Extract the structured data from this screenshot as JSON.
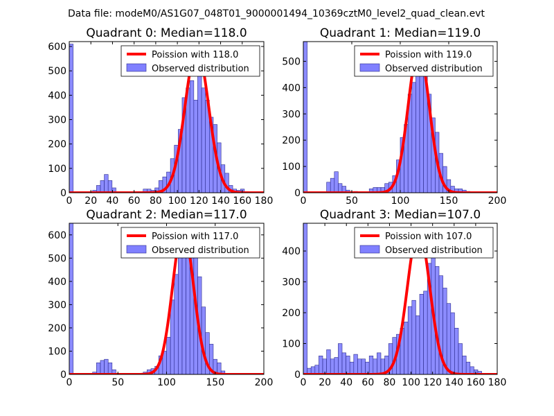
{
  "figure_title": "Data file: modeM0/AS1G07_048T01_9000001494_10369cztM0_level2_quad_clean.evt",
  "colors": {
    "curve": "#ff0000",
    "bar_fill": "#8080ff",
    "bar_edge": "#2a2a8a",
    "axes": "#000000"
  },
  "chart_data": [
    {
      "type": "bar",
      "title": "Quadrant 0: Median=118.0",
      "xlim": [
        0,
        180
      ],
      "ylim": [
        0,
        620
      ],
      "xticks": [
        0,
        20,
        40,
        60,
        80,
        100,
        120,
        140,
        160,
        180
      ],
      "yticks": [
        0,
        100,
        200,
        300,
        400,
        500,
        600
      ],
      "bin_width": 3.6,
      "bin_starts": [
        0,
        21.6,
        25.2,
        28.8,
        32.4,
        36,
        39.6,
        61.2,
        64.8,
        68.4,
        72,
        75.6,
        79.2,
        82.8,
        86.4,
        90,
        93.6,
        97.2,
        100.8,
        104.4,
        108,
        111.6,
        115.2,
        118.8,
        122.4,
        126,
        129.6,
        133.2,
        136.8,
        140.4,
        144,
        147.6,
        151.2,
        154.8,
        158.4,
        162
      ],
      "values": [
        610,
        10,
        30,
        50,
        75,
        50,
        20,
        5,
        5,
        15,
        15,
        10,
        20,
        50,
        65,
        85,
        140,
        195,
        260,
        390,
        430,
        460,
        380,
        510,
        430,
        380,
        310,
        280,
        205,
        115,
        80,
        30,
        15,
        10,
        15,
        5
      ],
      "legend": [
        "Poission with 118.0",
        "Observed distribution"
      ],
      "poisson_lambda": 118.0,
      "poisson_peak": 590
    },
    {
      "type": "bar",
      "title": "Quadrant 1: Median=119.0",
      "xlim": [
        0,
        200
      ],
      "ylim": [
        0,
        575
      ],
      "xticks": [
        0,
        50,
        100,
        150,
        200
      ],
      "yticks": [
        0,
        100,
        200,
        300,
        400,
        500
      ],
      "bin_width": 4,
      "bin_starts": [
        0,
        24,
        28,
        32,
        36,
        40,
        44,
        52,
        68,
        72,
        76,
        80,
        84,
        88,
        92,
        96,
        100,
        104,
        108,
        112,
        116,
        120,
        124,
        128,
        132,
        136,
        140,
        144,
        148,
        152,
        156,
        160,
        164,
        168
      ],
      "values": [
        580,
        40,
        55,
        80,
        35,
        25,
        10,
        5,
        15,
        20,
        20,
        20,
        35,
        40,
        65,
        125,
        210,
        260,
        375,
        420,
        450,
        445,
        450,
        375,
        285,
        230,
        150,
        100,
        50,
        25,
        15,
        15,
        10,
        5
      ],
      "legend": [
        "Poission with 119.0",
        "Observed distribution"
      ],
      "poisson_lambda": 119.0,
      "poisson_peak": 545
    },
    {
      "type": "bar",
      "title": "Quadrant 2: Median=117.0",
      "xlim": [
        0,
        200
      ],
      "ylim": [
        0,
        650
      ],
      "xticks": [
        0,
        50,
        100,
        150,
        200
      ],
      "yticks": [
        0,
        100,
        200,
        300,
        400,
        500,
        600
      ],
      "bin_width": 4,
      "bin_starts": [
        0,
        24,
        28,
        32,
        36,
        40,
        44,
        60,
        72,
        76,
        80,
        84,
        88,
        92,
        96,
        100,
        104,
        108,
        112,
        116,
        120,
        124,
        128,
        132,
        136,
        140,
        144,
        148,
        152,
        156,
        160
      ],
      "values": [
        650,
        10,
        50,
        60,
        65,
        50,
        20,
        5,
        5,
        10,
        20,
        25,
        35,
        80,
        100,
        160,
        320,
        430,
        540,
        610,
        610,
        560,
        520,
        420,
        290,
        180,
        130,
        65,
        50,
        15,
        5
      ],
      "legend": [
        "Poission with 117.0",
        "Observed distribution"
      ],
      "poisson_lambda": 117.0,
      "poisson_peak": 625
    },
    {
      "type": "bar",
      "title": "Quadrant 3: Median=107.0",
      "xlim": [
        0,
        180
      ],
      "ylim": [
        0,
        490
      ],
      "xticks": [
        0,
        20,
        40,
        60,
        80,
        100,
        120,
        140,
        160,
        180
      ],
      "yticks": [
        0,
        100,
        200,
        300,
        400
      ],
      "bin_width": 3.6,
      "bin_starts": [
        0,
        3.6,
        7.2,
        10.8,
        14.4,
        18,
        21.6,
        25.2,
        28.8,
        32.4,
        36,
        39.6,
        43.2,
        46.8,
        50.4,
        54,
        57.6,
        61.2,
        64.8,
        68.4,
        72,
        75.6,
        79.2,
        82.8,
        86.4,
        90,
        93.6,
        97.2,
        100.8,
        104.4,
        108,
        111.6,
        115.2,
        118.8,
        122.4,
        126,
        129.6,
        133.2,
        136.8,
        140.4,
        144,
        147.6,
        151.2,
        154.8,
        158.4,
        162
      ],
      "values": [
        490,
        20,
        25,
        30,
        60,
        50,
        80,
        50,
        55,
        100,
        70,
        60,
        40,
        65,
        50,
        50,
        40,
        60,
        50,
        70,
        50,
        60,
        100,
        120,
        130,
        150,
        170,
        220,
        240,
        190,
        260,
        270,
        360,
        410,
        350,
        320,
        280,
        230,
        200,
        150,
        100,
        60,
        40,
        25,
        15,
        10
      ],
      "legend": [
        "Poission with 107.0",
        "Observed distribution"
      ],
      "poisson_lambda": 107.0,
      "poisson_peak": 470
    }
  ]
}
